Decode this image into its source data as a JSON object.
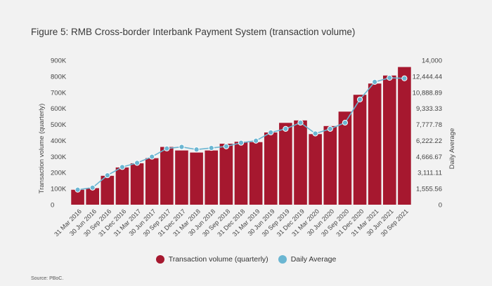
{
  "title": "Figure 5: RMB Cross-border Interbank Payment System (transaction volume)",
  "source": "Source: PBoC.",
  "colors": {
    "bar": "#a6182f",
    "line": "#6bb6d2",
    "background": "#f2f2f2"
  },
  "legend": {
    "bars": "Transaction volume (quarterly)",
    "line": "Daily Average"
  },
  "chart_data": {
    "type": "bar",
    "title": "Figure 5: RMB Cross-border Interbank Payment System (transaction volume)",
    "grid": false,
    "legend_position": "bottom",
    "categories": [
      "31 Mar 2016",
      "30 Jun 2016",
      "30 Sep 2016",
      "31 Dec 2016",
      "31 Mar 2017",
      "30 Jun 2017",
      "30 Sep 2017",
      "31 Dec 2017",
      "31 Mar 2018",
      "30 Jun 2018",
      "30 Sep 2018",
      "31 Dec 2018",
      "31 Mar 2019",
      "30 Jun 2019",
      "30 Sep 2019",
      "31 Dec 2019",
      "31 Mar 2020",
      "30 Jun 2020",
      "30 Sep 2020",
      "31 Dec 2020",
      "31 Mar 2021",
      "30 Jun 2021",
      "30 Sep 2021"
    ],
    "left_axis": {
      "label": "Transaction volume (quarterly)",
      "ylim": [
        0,
        900000
      ],
      "ticks": [
        "0",
        "100K",
        "200K",
        "300K",
        "400K",
        "500K",
        "600K",
        "700K",
        "800K",
        "900K"
      ]
    },
    "right_axis": {
      "label": "Daily Average",
      "ylim": [
        0,
        14000
      ],
      "ticks": [
        "0",
        "1,555.56",
        "3,111.11",
        "4,666.67",
        "6,222.22",
        "7,777.78",
        "9,333.33",
        "10,888.89",
        "12,444.44",
        "14,000"
      ]
    },
    "series": [
      {
        "name": "Transaction volume (quarterly)",
        "type": "bar",
        "axis": "left",
        "values": [
          93000,
          103000,
          180000,
          232000,
          258000,
          290000,
          360000,
          338000,
          325000,
          338000,
          380000,
          392000,
          390000,
          450000,
          510000,
          525000,
          440000,
          490000,
          580000,
          685000,
          755000,
          805000,
          858000
        ]
      },
      {
        "name": "Daily Average",
        "type": "line",
        "axis": "right",
        "values": [
          1450,
          1650,
          2850,
          3650,
          4050,
          4650,
          5450,
          5600,
          5350,
          5500,
          5650,
          6000,
          6200,
          7000,
          7350,
          7950,
          6900,
          7350,
          7950,
          10200,
          11900,
          12300,
          12250
        ]
      }
    ]
  }
}
